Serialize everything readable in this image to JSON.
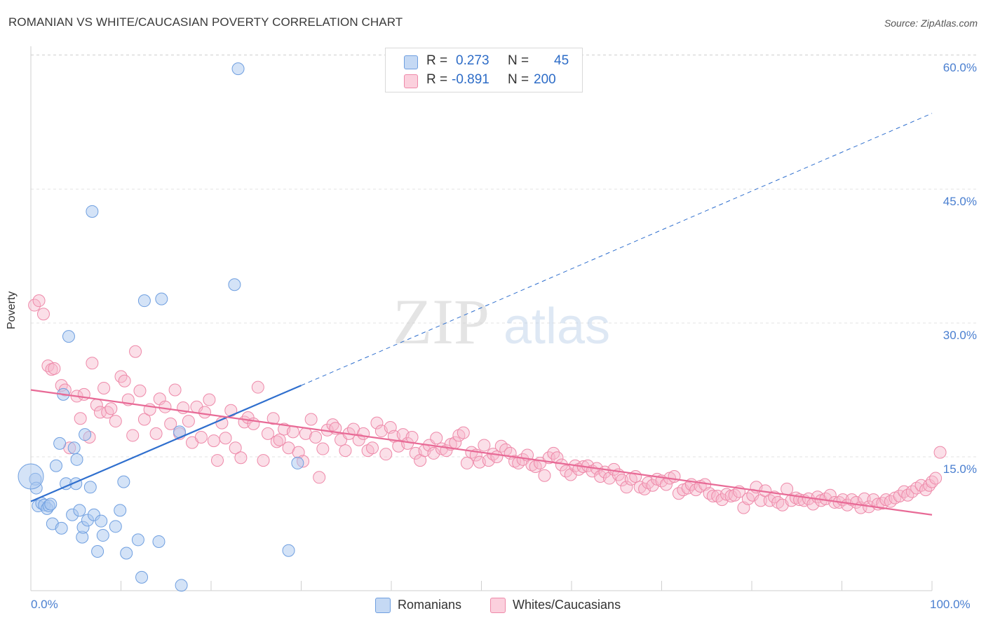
{
  "title": "ROMANIAN VS WHITE/CAUCASIAN POVERTY CORRELATION CHART",
  "source": "Source: ZipAtlas.com",
  "watermark": {
    "zip": "ZIP",
    "atlas": "atlas"
  },
  "legend": {
    "rows": [
      {
        "r_label": "R =",
        "r_value": "0.273",
        "n_label": "N =",
        "n_value": "45",
        "color": "#a9c8f0"
      },
      {
        "r_label": "R =",
        "r_value": "-0.891",
        "n_label": "N =",
        "n_value": "200",
        "color": "#f6b8cb"
      }
    ]
  },
  "bottom_legend": [
    {
      "label": "Romanians",
      "color": "#a9c8f0"
    },
    {
      "label": "Whites/Caucasians",
      "color": "#f6b8cb"
    }
  ],
  "colors": {
    "blue_point": "#a9c8f0",
    "blue_line": "#2f6fce",
    "pink_point": "#f6b8cb",
    "pink_line": "#e86a96",
    "axis_label": "#4a7fd0"
  },
  "chart_data": {
    "type": "scatter",
    "title": "ROMANIAN VS WHITE/CAUCASIAN POVERTY CORRELATION CHART",
    "xlabel": "",
    "ylabel": "Poverty",
    "xlim": [
      0,
      100
    ],
    "ylim": [
      0,
      60
    ],
    "x_tick_labels": [
      "0.0%",
      "100.0%"
    ],
    "y_tick_labels": [
      "15.0%",
      "30.0%",
      "45.0%",
      "60.0%"
    ],
    "y_ticks": [
      15,
      30,
      45,
      60
    ],
    "grid": true,
    "series": [
      {
        "name": "Romanians",
        "R": 0.273,
        "N": 45,
        "trend": {
          "x": [
            0,
            30
          ],
          "y": [
            10.0,
            23.0
          ],
          "dashed_to": {
            "x": 100,
            "y": 53.5
          }
        },
        "points": [
          [
            0.5,
            12.5
          ],
          [
            0.6,
            11.5
          ],
          [
            0.8,
            9.5
          ],
          [
            1.2,
            9.8
          ],
          [
            1.5,
            9.6
          ],
          [
            1.8,
            9.2
          ],
          [
            2.0,
            9.5
          ],
          [
            2.2,
            9.7
          ],
          [
            2.4,
            7.5
          ],
          [
            2.8,
            14.0
          ],
          [
            3.2,
            16.5
          ],
          [
            3.4,
            7.0
          ],
          [
            3.6,
            22.0
          ],
          [
            3.9,
            12.0
          ],
          [
            4.2,
            28.5
          ],
          [
            4.6,
            8.5
          ],
          [
            4.8,
            16.0
          ],
          [
            5.0,
            12.0
          ],
          [
            5.1,
            14.7
          ],
          [
            5.4,
            9.0
          ],
          [
            5.7,
            6.0
          ],
          [
            5.8,
            7.1
          ],
          [
            6.0,
            17.5
          ],
          [
            6.3,
            7.9
          ],
          [
            6.6,
            11.6
          ],
          [
            6.8,
            42.5
          ],
          [
            7.0,
            8.5
          ],
          [
            7.4,
            4.4
          ],
          [
            7.8,
            7.8
          ],
          [
            8.0,
            6.2
          ],
          [
            9.4,
            7.2
          ],
          [
            9.9,
            9.0
          ],
          [
            10.3,
            12.2
          ],
          [
            10.6,
            4.2
          ],
          [
            11.9,
            5.7
          ],
          [
            12.3,
            1.5
          ],
          [
            12.6,
            32.5
          ],
          [
            14.5,
            32.7
          ],
          [
            14.2,
            5.5
          ],
          [
            16.5,
            17.8
          ],
          [
            16.7,
            0.6
          ],
          [
            22.6,
            34.3
          ],
          [
            23.0,
            58.5
          ],
          [
            28.6,
            4.5
          ],
          [
            29.6,
            14.3
          ]
        ]
      },
      {
        "name": "Whites/Caucasians",
        "R": -0.891,
        "N": 200,
        "trend": {
          "x": [
            0,
            100
          ],
          "y": [
            22.5,
            8.5
          ]
        },
        "points": [
          [
            0.4,
            32.0
          ],
          [
            0.9,
            32.5
          ],
          [
            1.4,
            31.0
          ],
          [
            1.9,
            25.2
          ],
          [
            2.3,
            24.8
          ],
          [
            2.6,
            24.9
          ],
          [
            3.4,
            23.0
          ],
          [
            3.8,
            22.5
          ],
          [
            4.3,
            16.0
          ],
          [
            5.1,
            21.8
          ],
          [
            5.5,
            19.3
          ],
          [
            5.9,
            22.0
          ],
          [
            6.5,
            17.2
          ],
          [
            6.8,
            25.5
          ],
          [
            7.3,
            20.8
          ],
          [
            7.7,
            20.0
          ],
          [
            8.1,
            22.7
          ],
          [
            8.5,
            20.0
          ],
          [
            8.9,
            20.4
          ],
          [
            9.4,
            19.0
          ],
          [
            10.0,
            24.0
          ],
          [
            10.4,
            23.5
          ],
          [
            10.8,
            21.4
          ],
          [
            11.3,
            17.4
          ],
          [
            11.6,
            26.8
          ],
          [
            12.1,
            22.4
          ],
          [
            12.6,
            19.2
          ],
          [
            13.2,
            20.3
          ],
          [
            13.9,
            17.6
          ],
          [
            14.3,
            21.5
          ],
          [
            14.9,
            20.6
          ],
          [
            15.5,
            18.7
          ],
          [
            16.0,
            22.5
          ],
          [
            16.5,
            17.6
          ],
          [
            16.9,
            20.5
          ],
          [
            17.5,
            19.0
          ],
          [
            17.9,
            16.6
          ],
          [
            18.4,
            20.6
          ],
          [
            18.9,
            17.2
          ],
          [
            19.3,
            20.0
          ],
          [
            19.8,
            21.4
          ],
          [
            20.3,
            16.8
          ],
          [
            20.7,
            14.6
          ],
          [
            21.2,
            18.8
          ],
          [
            21.6,
            17.1
          ],
          [
            22.2,
            20.2
          ],
          [
            22.7,
            16.0
          ],
          [
            23.3,
            14.9
          ],
          [
            23.7,
            18.9
          ],
          [
            24.1,
            19.4
          ],
          [
            24.7,
            18.7
          ],
          [
            25.2,
            22.8
          ],
          [
            25.8,
            14.6
          ],
          [
            26.3,
            17.6
          ],
          [
            26.9,
            19.3
          ],
          [
            27.3,
            16.7
          ],
          [
            27.6,
            16.9
          ],
          [
            28.1,
            18.1
          ],
          [
            28.6,
            16.0
          ],
          [
            29.1,
            17.8
          ],
          [
            29.7,
            15.5
          ],
          [
            30.2,
            14.5
          ],
          [
            30.5,
            17.6
          ],
          [
            31.1,
            19.2
          ],
          [
            31.6,
            17.2
          ],
          [
            32.0,
            12.7
          ],
          [
            32.4,
            15.9
          ],
          [
            32.9,
            18.0
          ],
          [
            33.5,
            18.6
          ],
          [
            33.8,
            18.2
          ],
          [
            34.4,
            16.9
          ],
          [
            34.9,
            15.7
          ],
          [
            35.3,
            17.6
          ],
          [
            35.8,
            18.1
          ],
          [
            36.4,
            16.9
          ],
          [
            36.9,
            17.6
          ],
          [
            37.4,
            15.7
          ],
          [
            37.9,
            16.0
          ],
          [
            38.4,
            18.8
          ],
          [
            38.9,
            17.9
          ],
          [
            39.4,
            15.3
          ],
          [
            39.9,
            18.3
          ],
          [
            40.3,
            17.3
          ],
          [
            40.8,
            16.2
          ],
          [
            41.3,
            17.5
          ],
          [
            41.8,
            16.5
          ],
          [
            42.3,
            17.2
          ],
          [
            42.7,
            15.4
          ],
          [
            43.2,
            14.6
          ],
          [
            43.7,
            15.7
          ],
          [
            44.2,
            16.3
          ],
          [
            44.7,
            15.4
          ],
          [
            45.0,
            17.1
          ],
          [
            45.6,
            15.9
          ],
          [
            46.1,
            15.7
          ],
          [
            46.6,
            16.4
          ],
          [
            47.1,
            16.6
          ],
          [
            47.5,
            17.4
          ],
          [
            48.0,
            17.7
          ],
          [
            48.4,
            14.3
          ],
          [
            48.9,
            15.5
          ],
          [
            49.4,
            15.2
          ],
          [
            49.8,
            14.4
          ],
          [
            50.3,
            16.3
          ],
          [
            50.8,
            14.6
          ],
          [
            51.3,
            15.3
          ],
          [
            51.7,
            15.0
          ],
          [
            52.2,
            16.2
          ],
          [
            52.7,
            15.8
          ],
          [
            53.2,
            15.4
          ],
          [
            53.7,
            14.5
          ],
          [
            54.1,
            14.3
          ],
          [
            54.6,
            14.7
          ],
          [
            55.1,
            15.2
          ],
          [
            55.6,
            14.1
          ],
          [
            56.0,
            13.9
          ],
          [
            56.5,
            14.3
          ],
          [
            57.0,
            12.9
          ],
          [
            57.5,
            14.9
          ],
          [
            58.0,
            15.4
          ],
          [
            58.4,
            14.9
          ],
          [
            58.9,
            14.1
          ],
          [
            59.4,
            13.4
          ],
          [
            59.9,
            13.0
          ],
          [
            60.4,
            14.0
          ],
          [
            60.8,
            13.6
          ],
          [
            61.3,
            13.9
          ],
          [
            61.8,
            14.0
          ],
          [
            62.3,
            13.4
          ],
          [
            62.8,
            13.7
          ],
          [
            63.2,
            12.8
          ],
          [
            63.7,
            13.3
          ],
          [
            64.2,
            12.6
          ],
          [
            64.7,
            13.6
          ],
          [
            65.2,
            13.0
          ],
          [
            65.6,
            12.4
          ],
          [
            66.1,
            11.6
          ],
          [
            66.6,
            12.5
          ],
          [
            67.1,
            12.8
          ],
          [
            67.6,
            11.6
          ],
          [
            68.1,
            11.4
          ],
          [
            68.5,
            12.1
          ],
          [
            69.0,
            11.8
          ],
          [
            69.5,
            12.5
          ],
          [
            70.0,
            12.3
          ],
          [
            70.5,
            11.9
          ],
          [
            70.9,
            12.6
          ],
          [
            71.4,
            12.8
          ],
          [
            71.9,
            10.9
          ],
          [
            72.4,
            11.3
          ],
          [
            72.9,
            11.5
          ],
          [
            73.3,
            11.9
          ],
          [
            73.8,
            11.3
          ],
          [
            74.3,
            11.7
          ],
          [
            74.8,
            11.9
          ],
          [
            75.3,
            10.9
          ],
          [
            75.7,
            10.6
          ],
          [
            76.2,
            10.6
          ],
          [
            76.7,
            10.2
          ],
          [
            77.2,
            10.8
          ],
          [
            77.7,
            10.6
          ],
          [
            78.1,
            10.7
          ],
          [
            78.6,
            11.1
          ],
          [
            79.1,
            9.3
          ],
          [
            79.6,
            10.3
          ],
          [
            80.1,
            10.7
          ],
          [
            80.5,
            11.6
          ],
          [
            81.0,
            10.1
          ],
          [
            81.5,
            11.2
          ],
          [
            82.0,
            10.1
          ],
          [
            82.5,
            10.5
          ],
          [
            82.9,
            9.9
          ],
          [
            83.4,
            9.6
          ],
          [
            83.9,
            11.4
          ],
          [
            84.4,
            10.1
          ],
          [
            84.9,
            10.4
          ],
          [
            85.3,
            10.2
          ],
          [
            85.8,
            10.1
          ],
          [
            86.3,
            10.3
          ],
          [
            86.8,
            9.7
          ],
          [
            87.3,
            10.5
          ],
          [
            87.7,
            10.1
          ],
          [
            88.2,
            10.3
          ],
          [
            88.7,
            10.7
          ],
          [
            89.2,
            9.9
          ],
          [
            89.7,
            9.9
          ],
          [
            90.1,
            10.2
          ],
          [
            90.6,
            9.6
          ],
          [
            91.1,
            10.2
          ],
          [
            91.6,
            9.9
          ],
          [
            92.1,
            9.3
          ],
          [
            92.5,
            10.3
          ],
          [
            93.0,
            9.4
          ],
          [
            93.5,
            10.2
          ],
          [
            94.0,
            9.7
          ],
          [
            94.5,
            9.8
          ],
          [
            94.9,
            10.2
          ],
          [
            95.4,
            10.0
          ],
          [
            95.9,
            10.4
          ],
          [
            96.4,
            10.6
          ],
          [
            96.9,
            11.1
          ],
          [
            97.3,
            10.7
          ],
          [
            97.8,
            11.1
          ],
          [
            98.3,
            11.5
          ],
          [
            98.8,
            11.8
          ],
          [
            99.3,
            11.3
          ],
          [
            99.7,
            11.8
          ],
          [
            100.0,
            12.2
          ],
          [
            100.4,
            12.6
          ],
          [
            100.9,
            15.5
          ]
        ]
      }
    ]
  }
}
